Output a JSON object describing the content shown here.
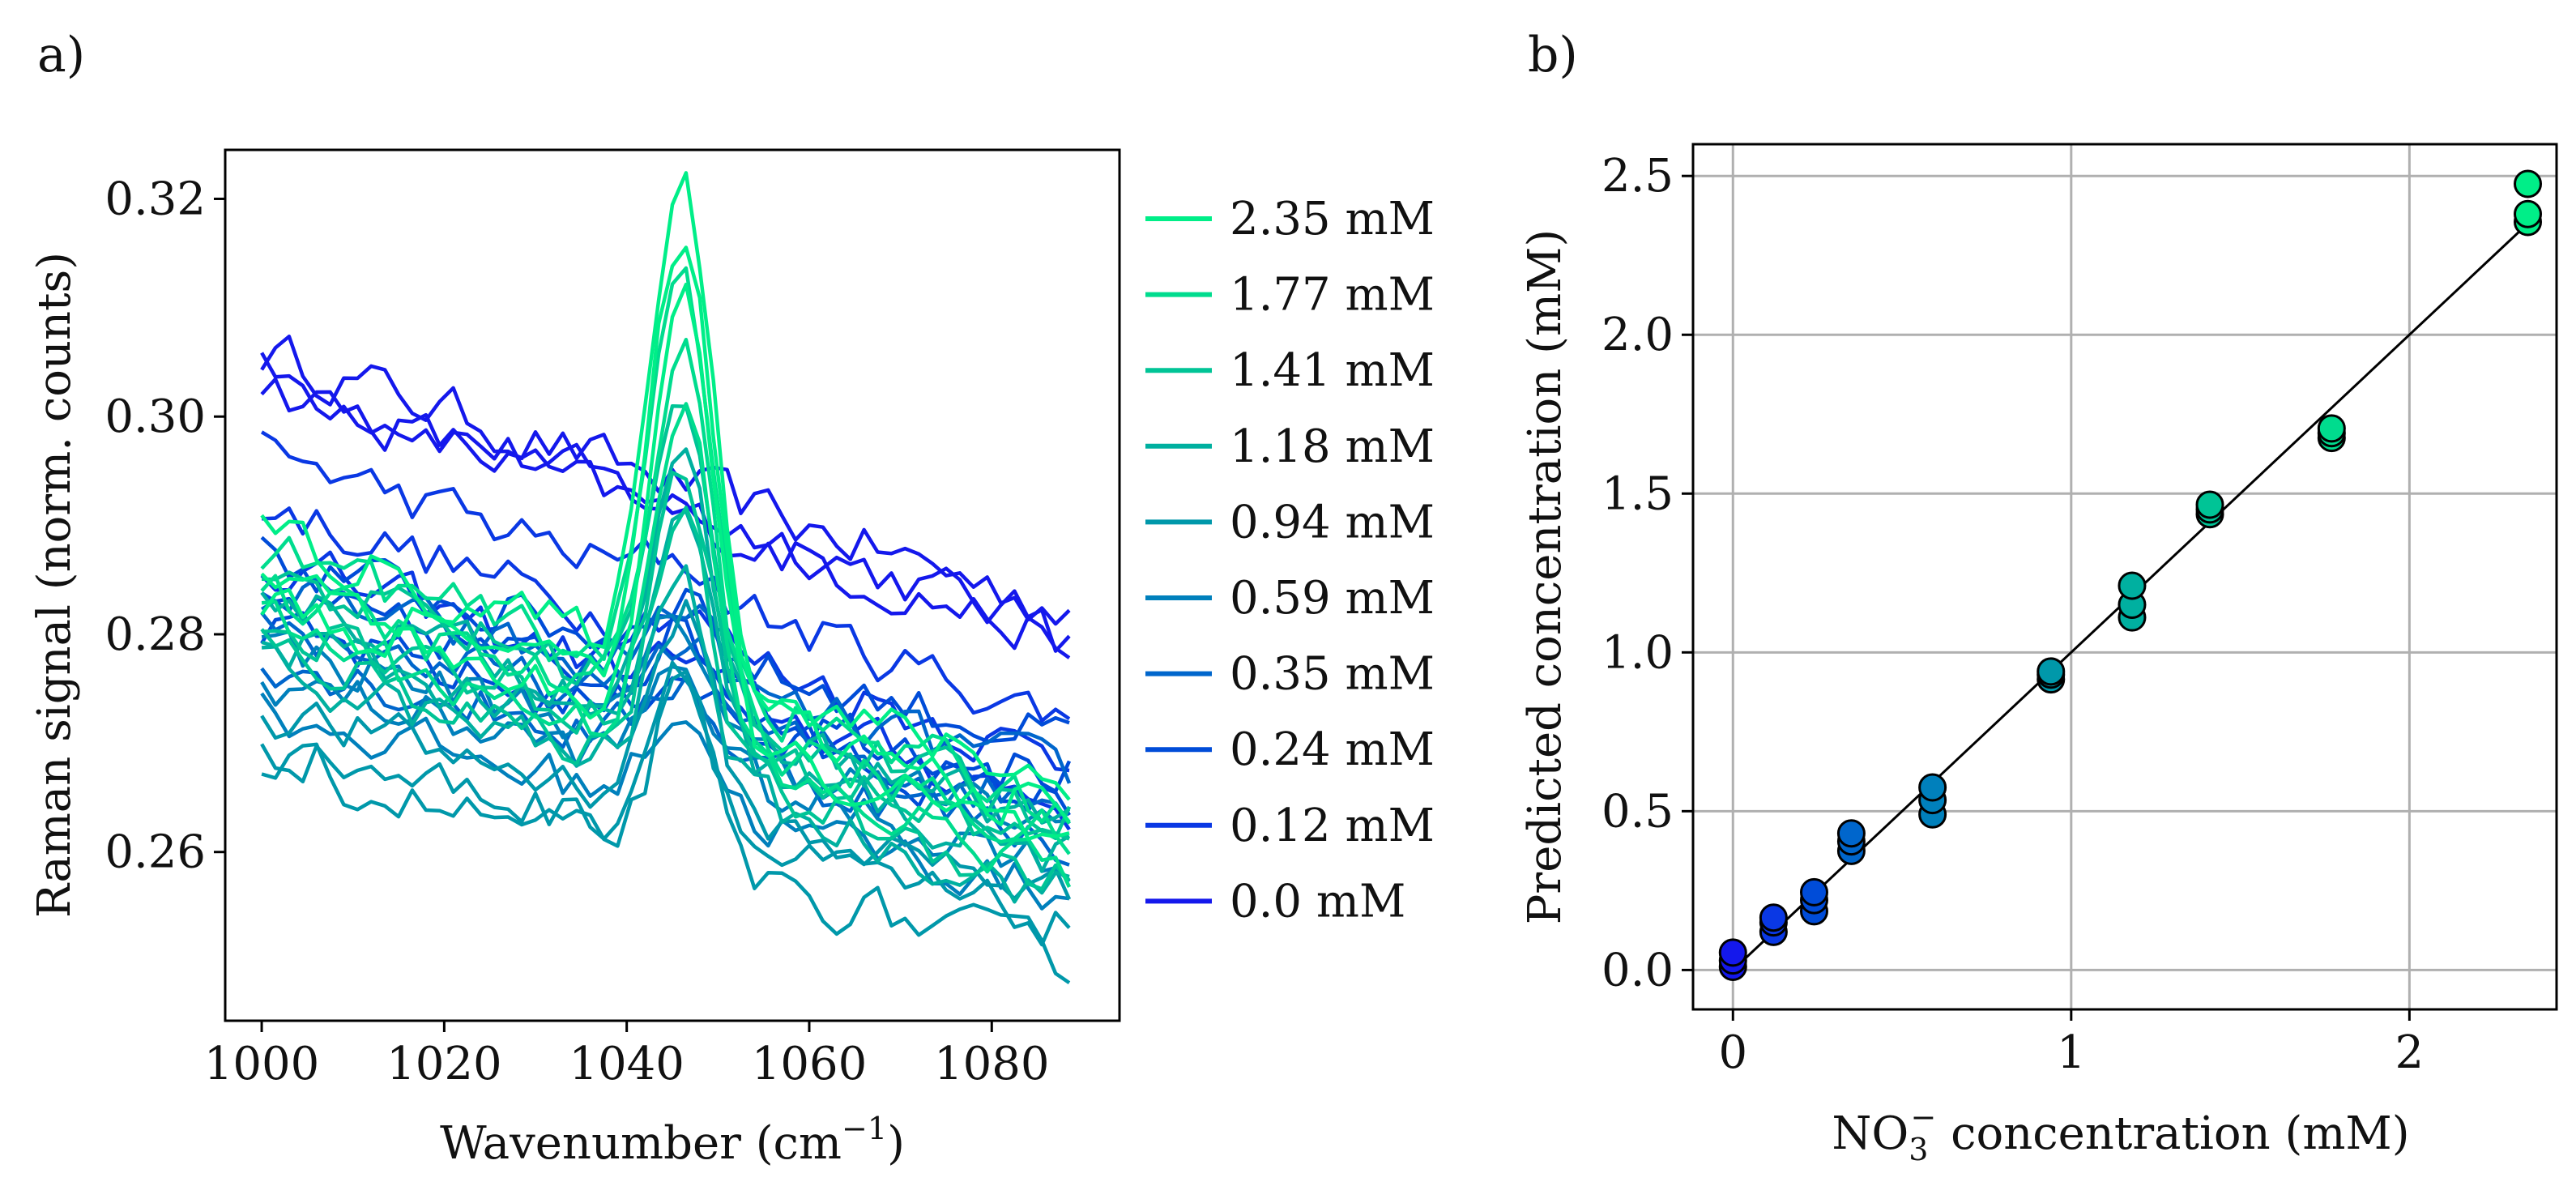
{
  "chart_data": [
    {
      "panel_label": "a)",
      "type": "line",
      "xlabel_main": "Wavenumber (cm",
      "xlabel_sup": "−1",
      "xlabel_close": ")",
      "ylabel": "Raman signal (norm. counts)",
      "xlim": [
        996,
        1094
      ],
      "ylim": [
        0.2445,
        0.3245
      ],
      "xticks": [
        1000,
        1020,
        1040,
        1060,
        1080
      ],
      "xtick_labels": [
        "1000",
        "1020",
        "1040",
        "1060",
        "1080"
      ],
      "yticks": [
        0.26,
        0.28,
        0.3,
        0.32
      ],
      "ytick_labels": [
        "0.26",
        "0.28",
        "0.30",
        "0.32"
      ],
      "x_range": [
        1000,
        1089
      ],
      "x_step": 1.5,
      "peak_center": 1046,
      "peak_width": 3.3,
      "legend_position": "outside-right",
      "series": [
        {
          "name": "2.35 mM",
          "color": "#00ee88",
          "peak": 0.046,
          "base_start": [
            0.289,
            0.286,
            0.283
          ],
          "base_end": [
            0.266,
            0.263,
            0.26
          ]
        },
        {
          "name": "1.77 mM",
          "color": "#00dc8e",
          "peak": 0.038,
          "base_start": [
            0.288,
            0.284,
            0.281
          ],
          "base_end": [
            0.264,
            0.261,
            0.258
          ]
        },
        {
          "name": "1.41 mM",
          "color": "#00c496",
          "peak": 0.026,
          "base_start": [
            0.286,
            0.282,
            0.279
          ],
          "base_end": [
            0.263,
            0.26,
            0.257
          ]
        },
        {
          "name": "1.18 mM",
          "color": "#00b0a0",
          "peak": 0.022,
          "base_start": [
            0.284,
            0.28,
            0.277
          ],
          "base_end": [
            0.262,
            0.259,
            0.256
          ]
        },
        {
          "name": "0.94 mM",
          "color": "#0098aa",
          "peak": 0.018,
          "base_start": [
            0.273,
            0.27,
            0.268
          ],
          "base_end": [
            0.256,
            0.253,
            0.25
          ]
        },
        {
          "name": "0.59 mM",
          "color": "#0080bc",
          "peak": 0.011,
          "base_start": [
            0.279,
            0.276,
            0.273
          ],
          "base_end": [
            0.262,
            0.259,
            0.256
          ]
        },
        {
          "name": "0.35 mM",
          "color": "#0066cc",
          "peak": 0.008,
          "base_start": [
            0.284,
            0.281,
            0.278
          ],
          "base_end": [
            0.267,
            0.264,
            0.261
          ]
        },
        {
          "name": "0.24 mM",
          "color": "#004cd8",
          "peak": 0.006,
          "base_start": [
            0.287,
            0.283,
            0.28
          ],
          "base_end": [
            0.27,
            0.267,
            0.264
          ]
        },
        {
          "name": "0.12 mM",
          "color": "#0a38e4",
          "peak": 0.003,
          "base_start": [
            0.297,
            0.292,
            0.287
          ],
          "base_end": [
            0.272,
            0.268,
            0.264
          ]
        },
        {
          "name": "0.0 mM",
          "color": "#1418ec",
          "peak": 0.0,
          "base_start": [
            0.306,
            0.304,
            0.303
          ],
          "base_end": [
            0.282,
            0.28,
            0.279
          ]
        }
      ]
    },
    {
      "panel_label": "b)",
      "type": "scatter",
      "xlabel_pre": "NO",
      "xlabel_sub": "3",
      "xlabel_sup": "−",
      "xlabel_post": " concentration (mM)",
      "ylabel": "Predicted concentration (mM)",
      "xlim": [
        -0.118,
        2.435
      ],
      "ylim": [
        -0.124,
        2.6
      ],
      "grid": true,
      "xticks": [
        0,
        1,
        2
      ],
      "xtick_labels": [
        "0",
        "1",
        "2"
      ],
      "yticks": [
        0.0,
        0.5,
        1.0,
        1.5,
        2.0,
        2.5
      ],
      "ytick_labels": [
        "0.0",
        "0.5",
        "1.0",
        "1.5",
        "2.0",
        "2.5"
      ],
      "fit_line": {
        "x": [
          -0.02,
          2.35
        ],
        "y": [
          -0.02,
          2.35
        ]
      },
      "points": [
        {
          "x": 0.0,
          "y": 0.01,
          "color": "#1418ec"
        },
        {
          "x": 0.0,
          "y": 0.03,
          "color": "#1418ec"
        },
        {
          "x": 0.0,
          "y": 0.055,
          "color": "#1418ec"
        },
        {
          "x": 0.12,
          "y": 0.12,
          "color": "#0a38e4"
        },
        {
          "x": 0.12,
          "y": 0.15,
          "color": "#0a38e4"
        },
        {
          "x": 0.12,
          "y": 0.165,
          "color": "#0a38e4"
        },
        {
          "x": 0.24,
          "y": 0.185,
          "color": "#004cd8"
        },
        {
          "x": 0.24,
          "y": 0.22,
          "color": "#004cd8"
        },
        {
          "x": 0.24,
          "y": 0.245,
          "color": "#004cd8"
        },
        {
          "x": 0.35,
          "y": 0.375,
          "color": "#0066cc"
        },
        {
          "x": 0.35,
          "y": 0.405,
          "color": "#0066cc"
        },
        {
          "x": 0.35,
          "y": 0.43,
          "color": "#0066cc"
        },
        {
          "x": 0.59,
          "y": 0.49,
          "color": "#0080bc"
        },
        {
          "x": 0.59,
          "y": 0.535,
          "color": "#0080bc"
        },
        {
          "x": 0.59,
          "y": 0.575,
          "color": "#0080bc"
        },
        {
          "x": 0.94,
          "y": 0.915,
          "color": "#0098aa"
        },
        {
          "x": 0.94,
          "y": 0.93,
          "color": "#0098aa"
        },
        {
          "x": 0.94,
          "y": 0.94,
          "color": "#0098aa"
        },
        {
          "x": 1.18,
          "y": 1.11,
          "color": "#00b0a0"
        },
        {
          "x": 1.18,
          "y": 1.15,
          "color": "#00b0a0"
        },
        {
          "x": 1.18,
          "y": 1.21,
          "color": "#00b0a0"
        },
        {
          "x": 1.41,
          "y": 1.435,
          "color": "#00c496"
        },
        {
          "x": 1.41,
          "y": 1.45,
          "color": "#00c496"
        },
        {
          "x": 1.41,
          "y": 1.465,
          "color": "#00c496"
        },
        {
          "x": 1.77,
          "y": 1.675,
          "color": "#00dc8e"
        },
        {
          "x": 1.77,
          "y": 1.69,
          "color": "#00dc8e"
        },
        {
          "x": 1.77,
          "y": 1.705,
          "color": "#00dc8e"
        },
        {
          "x": 2.35,
          "y": 2.355,
          "color": "#00ee88"
        },
        {
          "x": 2.35,
          "y": 2.38,
          "color": "#00ee88"
        },
        {
          "x": 2.35,
          "y": 2.475,
          "color": "#00ee88"
        }
      ]
    }
  ]
}
